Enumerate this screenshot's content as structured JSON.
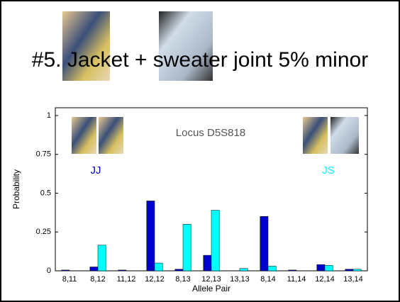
{
  "slide_title": "#5. Jacket + sweater joint 5% minor",
  "chart_data": {
    "type": "bar",
    "title": "Locus D5S818",
    "xlabel": "Allele Pair",
    "ylabel": "Probability",
    "categories": [
      "8,11",
      "8,12",
      "11,12",
      "12,12",
      "8,13",
      "12,13",
      "13,13",
      "8,14",
      "11,14",
      "12,14",
      "13,14"
    ],
    "series": [
      {
        "name": "JJ",
        "color": "#0000cc",
        "values": [
          0.005,
          0.025,
          0.005,
          0.45,
          0.01,
          0.1,
          0,
          0.35,
          0.005,
          0.04,
          0.01
        ]
      },
      {
        "name": "JS",
        "color": "#00ffff",
        "values": [
          0,
          0.165,
          0,
          0.05,
          0.3,
          0.39,
          0.015,
          0.03,
          0,
          0.035,
          0.01
        ]
      }
    ],
    "ylim": [
      0,
      1.05
    ],
    "yticks": [
      0,
      0.25,
      0.5,
      0.75,
      1
    ]
  }
}
